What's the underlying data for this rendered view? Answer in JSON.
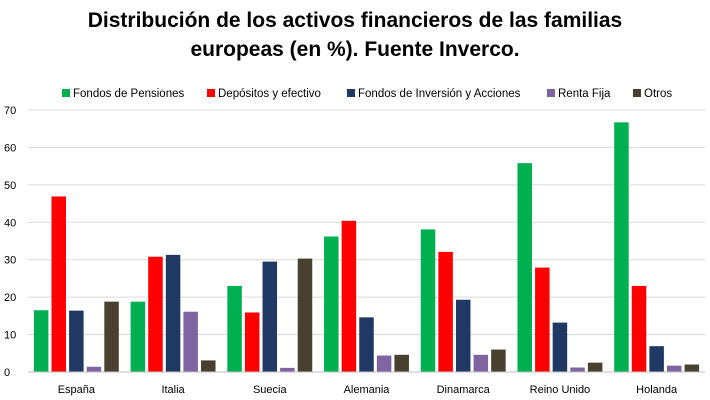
{
  "chart_data": {
    "type": "bar",
    "title_lines": [
      "Distribución de los activos financieros de las familias",
      "europeas (en %). Fuente Inverco."
    ],
    "categories": [
      "España",
      "Italia",
      "Suecia",
      "Alemania",
      "Dinamarca",
      "Reino Unido",
      "Holanda"
    ],
    "series": [
      {
        "name": "Fondos de Pensiones",
        "color": "#00b050",
        "values": [
          16.5,
          18.8,
          23,
          36.2,
          38.1,
          55.8,
          66.7
        ]
      },
      {
        "name": "Depósitos y efectivo",
        "color": "#ff0000",
        "values": [
          46.9,
          30.8,
          15.9,
          40.4,
          32.1,
          27.9,
          23
        ]
      },
      {
        "name": "Fondos de Inversión y Acciones",
        "color": "#1f3864",
        "values": [
          16.4,
          31.3,
          29.5,
          14.6,
          19.3,
          13.2,
          6.9
        ]
      },
      {
        "name": "Renta Fija",
        "color": "#8064a2",
        "values": [
          1.4,
          16.1,
          1.1,
          4.4,
          4.6,
          1.2,
          1.7
        ]
      },
      {
        "name": "Otros",
        "color": "#4a4030",
        "values": [
          18.8,
          3.1,
          30.3,
          4.6,
          6.0,
          2.5,
          2.0
        ]
      }
    ],
    "ylim": [
      0,
      70
    ],
    "yticks": [
      0,
      10,
      20,
      30,
      40,
      50,
      60,
      70
    ],
    "grid": true,
    "legend_position": "top"
  }
}
